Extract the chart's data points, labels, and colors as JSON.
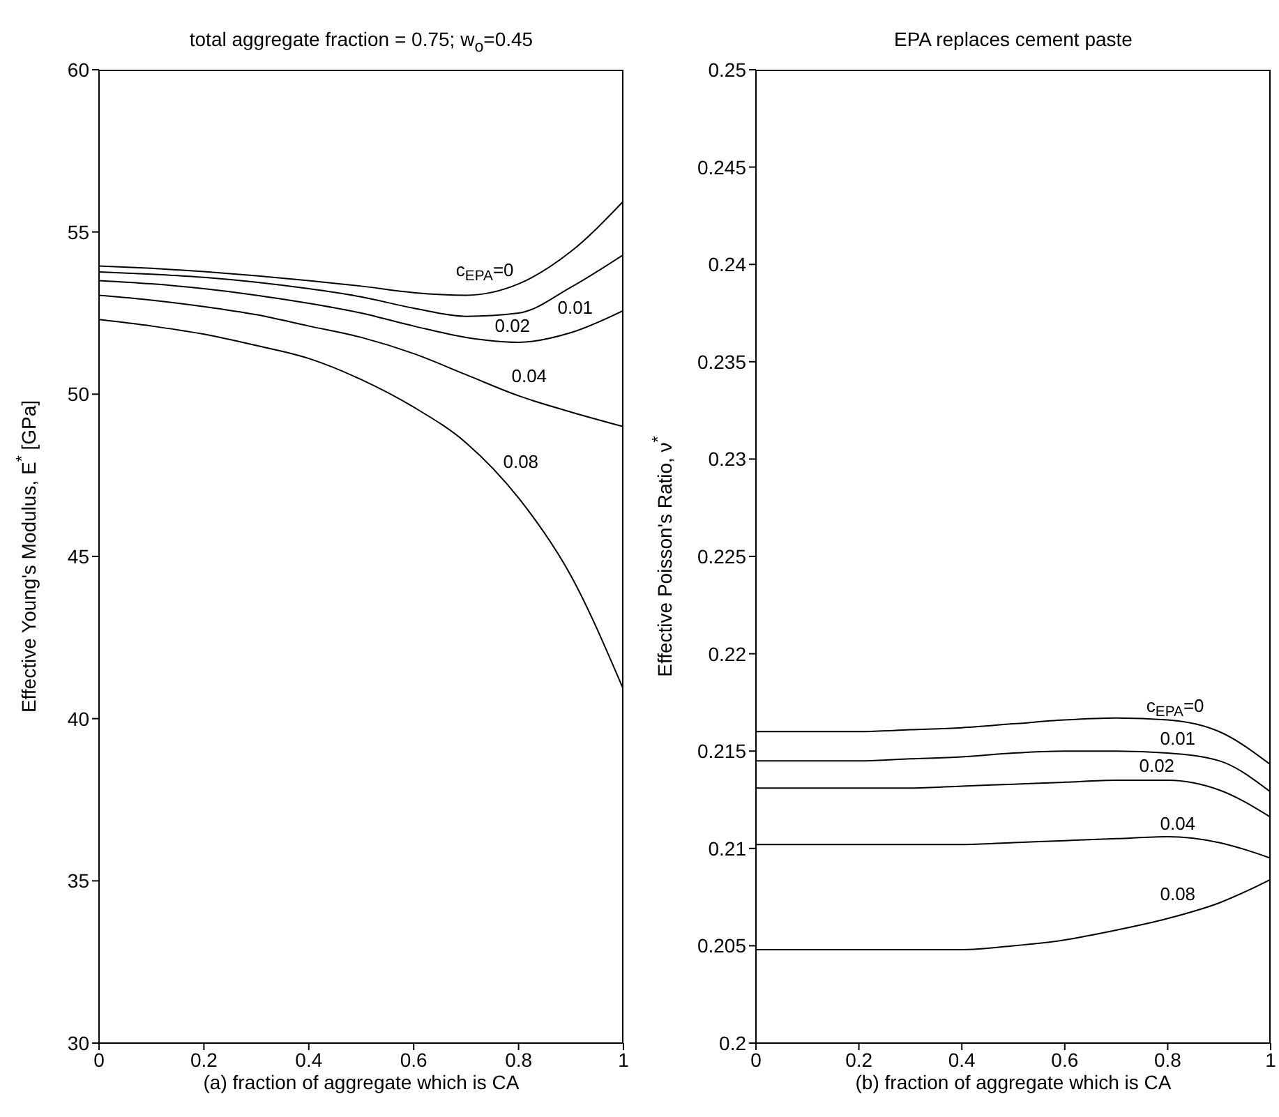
{
  "chart_data": [
    {
      "type": "line",
      "title": "total aggregate fraction = 0.75; w$_{o}$=0.45",
      "xlabel": "(a) fraction of aggregate which is CA",
      "ylabel": "Effective Young's Modulus, E$^{*}$ [GPa]",
      "x": [
        0,
        0.1,
        0.2,
        0.3,
        0.4,
        0.5,
        0.6,
        0.7,
        0.8,
        0.9,
        1
      ],
      "xlim": [
        0,
        1
      ],
      "xticks": [
        0,
        0.2,
        0.4,
        0.6,
        0.8,
        1
      ],
      "ylim": [
        30,
        60
      ],
      "yticks": [
        30,
        35,
        40,
        45,
        50,
        55,
        60
      ],
      "marker": "none",
      "series": [
        {
          "name": "c$_{EPA}$=0",
          "color": "#000000",
          "values": [
            53.95,
            53.88,
            53.78,
            53.65,
            53.5,
            53.33,
            53.13,
            53.05,
            53.4,
            54.4,
            55.95
          ]
        },
        {
          "name": "0.01",
          "color": "#000000",
          "values": [
            53.77,
            53.7,
            53.6,
            53.45,
            53.25,
            53.0,
            52.65,
            52.4,
            52.5,
            53.3,
            54.3
          ]
        },
        {
          "name": "0.02",
          "color": "#000000",
          "values": [
            53.5,
            53.4,
            53.25,
            53.05,
            52.8,
            52.5,
            52.1,
            51.75,
            51.6,
            51.9,
            52.58
          ]
        },
        {
          "name": "0.04",
          "color": "#000000",
          "values": [
            53.05,
            52.9,
            52.7,
            52.45,
            52.1,
            51.75,
            51.25,
            50.6,
            49.95,
            49.45,
            49.0
          ]
        },
        {
          "name": "0.08",
          "color": "#000000",
          "values": [
            52.3,
            52.1,
            51.85,
            51.5,
            51.1,
            50.45,
            49.6,
            48.5,
            46.8,
            44.4,
            40.9
          ]
        }
      ]
    },
    {
      "type": "line",
      "title": "EPA replaces cement paste",
      "xlabel": "(b) fraction of aggregate which is CA",
      "ylabel": "Effective Poisson's Ratio, ν$^{*}$",
      "x": [
        0,
        0.1,
        0.2,
        0.3,
        0.4,
        0.5,
        0.6,
        0.7,
        0.8,
        0.9,
        1
      ],
      "xlim": [
        0,
        1
      ],
      "xticks": [
        0,
        0.2,
        0.4,
        0.6,
        0.8,
        1
      ],
      "ylim": [
        0.2,
        0.25
      ],
      "yticks": [
        0.2,
        0.205,
        0.21,
        0.215,
        0.22,
        0.225,
        0.23,
        0.235,
        0.24,
        0.245,
        0.25
      ],
      "marker": "none",
      "series": [
        {
          "name": "c$_{EPA}$=0",
          "color": "#000000",
          "values": [
            0.216,
            0.216,
            0.216,
            0.2161,
            0.2162,
            0.2164,
            0.2166,
            0.2167,
            0.2166,
            0.216,
            0.2143
          ]
        },
        {
          "name": "0.01",
          "color": "#000000",
          "values": [
            0.2145,
            0.2145,
            0.2145,
            0.2146,
            0.2147,
            0.2149,
            0.215,
            0.215,
            0.2149,
            0.2145,
            0.2129
          ]
        },
        {
          "name": "0.02",
          "color": "#000000",
          "values": [
            0.2131,
            0.2131,
            0.2131,
            0.2131,
            0.2132,
            0.2133,
            0.2134,
            0.2135,
            0.2135,
            0.213,
            0.2116
          ]
        },
        {
          "name": "0.04",
          "color": "#000000",
          "values": [
            0.2102,
            0.2102,
            0.2102,
            0.2102,
            0.2102,
            0.2103,
            0.2104,
            0.2105,
            0.2106,
            0.2103,
            0.2095
          ]
        },
        {
          "name": "0.08",
          "color": "#000000",
          "values": [
            0.2048,
            0.2048,
            0.2048,
            0.2048,
            0.2048,
            0.205,
            0.2053,
            0.2058,
            0.2064,
            0.2072,
            0.2084
          ]
        }
      ]
    }
  ]
}
